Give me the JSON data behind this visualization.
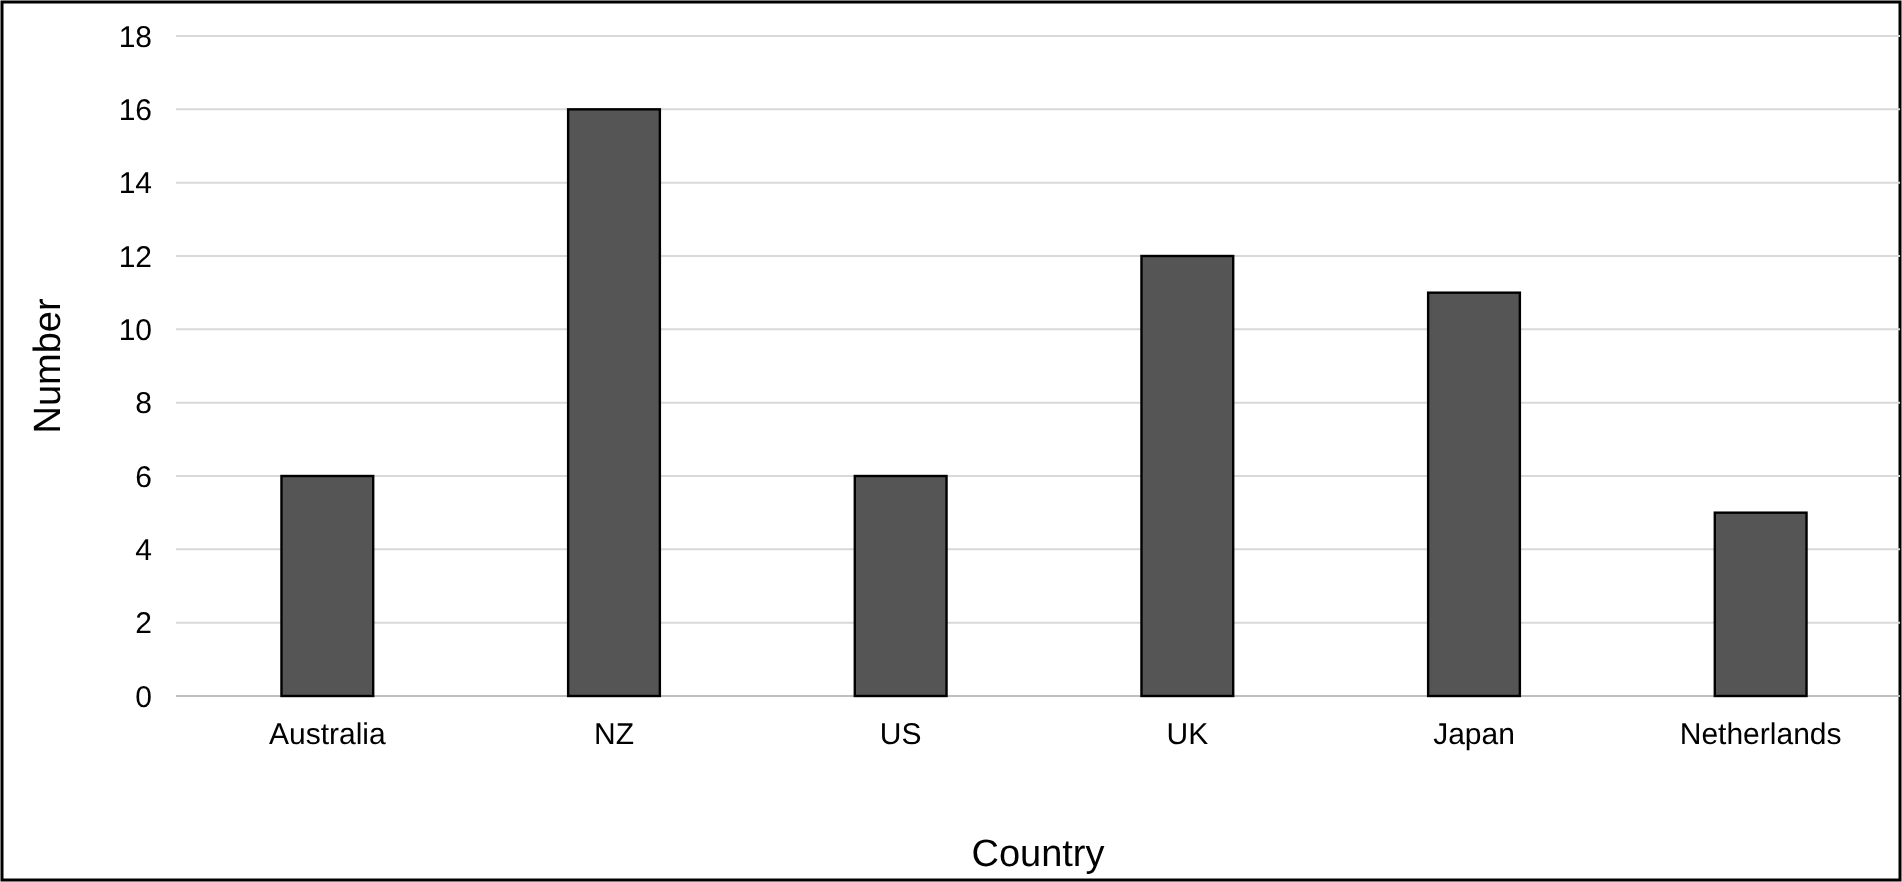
{
  "chart_data": {
    "type": "bar",
    "xlabel": "Country",
    "ylabel": "Number",
    "categories": [
      "Australia",
      "NZ",
      "US",
      "UK",
      "Japan",
      "Netherlands"
    ],
    "values": [
      6,
      16,
      6,
      12,
      11,
      5
    ],
    "color": "#555555",
    "ylim": [
      0,
      18
    ],
    "yticks": [
      0,
      2,
      4,
      6,
      8,
      10,
      12,
      14,
      16,
      18
    ],
    "grid": "y"
  }
}
